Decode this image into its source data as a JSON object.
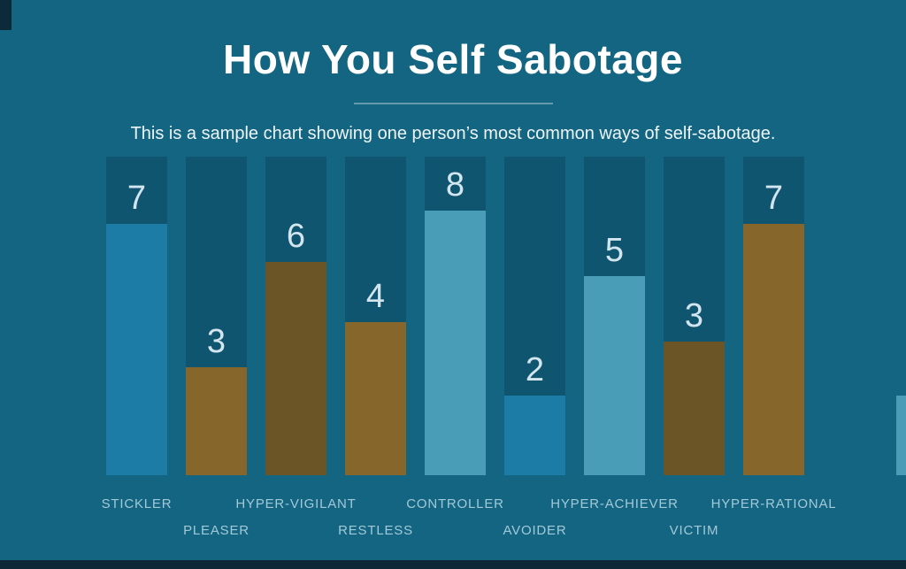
{
  "header": {
    "title": "How You Self Sabotage",
    "subtitle": "This is a sample chart showing one person’s most common ways of self-sabotage."
  },
  "colors": {
    "background": "#136581",
    "track": "#105570",
    "medium_blue_bar": "#1d7ca6",
    "light_blue_bar": "#4a9db6",
    "gold_bar": "#86662b",
    "dark_brown_bar": "#6b5527",
    "value_text": "#d3e5ee",
    "category_text": "#a3c9d8",
    "title_text": "#ffffff",
    "bottom_strip": "#0e2837"
  },
  "chart_data": {
    "type": "bar",
    "title": "How You Self Sabotage",
    "subtitle": "This is a sample chart showing one person’s most common ways of self-sabotage.",
    "categories": [
      "STICKLER",
      "PLEASER",
      "HYPER-VIGILANT",
      "RESTLESS",
      "CONTROLLER",
      "AVOIDER",
      "HYPER-ACHIEVER",
      "VICTIM",
      "HYPER-RATIONAL"
    ],
    "values": [
      7,
      3,
      6,
      4,
      8,
      2,
      5,
      3,
      7
    ],
    "bar_colors": [
      "#1d7ca6",
      "#86662b",
      "#6b5527",
      "#86662b",
      "#4a9db6",
      "#1d7ca6",
      "#4a9db6",
      "#6b5527",
      "#86662b"
    ],
    "fill_pct": [
      79,
      34,
      67,
      48,
      83,
      25,
      62.5,
      42,
      79
    ],
    "label_row": [
      1,
      2,
      1,
      2,
      1,
      2,
      1,
      2,
      1
    ],
    "value_labels_shown": true,
    "axes_shown": false,
    "grid": false,
    "legend": false,
    "edge_sliver_color": "#4a9db6"
  }
}
